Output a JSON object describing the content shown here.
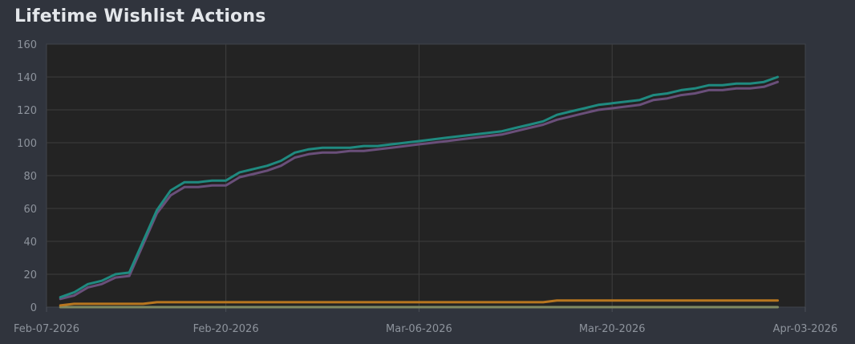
{
  "chart_data": {
    "type": "line",
    "title": "Lifetime Wishlist Actions",
    "xlabel": "",
    "ylabel": "",
    "x_range": [
      "2026-02-07",
      "2026-04-03"
    ],
    "ylim": [
      0,
      160
    ],
    "y_ticks": [
      0,
      20,
      40,
      60,
      80,
      100,
      120,
      140,
      160
    ],
    "x_ticks": [
      "Feb-07-2026",
      "Feb-20-2026",
      "Mar-06-2026",
      "Mar-20-2026",
      "Apr-03-2026"
    ],
    "x_tick_dates": [
      "2026-02-07",
      "2026-02-20",
      "2026-03-06",
      "2026-03-20",
      "2026-04-03"
    ],
    "grid": true,
    "legend": "none",
    "x": [
      "2026-02-08",
      "2026-02-09",
      "2026-02-10",
      "2026-02-11",
      "2026-02-12",
      "2026-02-13",
      "2026-02-14",
      "2026-02-15",
      "2026-02-16",
      "2026-02-17",
      "2026-02-18",
      "2026-02-19",
      "2026-02-20",
      "2026-02-21",
      "2026-02-22",
      "2026-02-23",
      "2026-02-24",
      "2026-02-25",
      "2026-02-26",
      "2026-02-27",
      "2026-02-28",
      "2026-03-01",
      "2026-03-02",
      "2026-03-03",
      "2026-03-04",
      "2026-03-05",
      "2026-03-06",
      "2026-03-07",
      "2026-03-08",
      "2026-03-09",
      "2026-03-10",
      "2026-03-11",
      "2026-03-12",
      "2026-03-13",
      "2026-03-14",
      "2026-03-15",
      "2026-03-16",
      "2026-03-17",
      "2026-03-18",
      "2026-03-19",
      "2026-03-20",
      "2026-03-21",
      "2026-03-22",
      "2026-03-23",
      "2026-03-24",
      "2026-03-25",
      "2026-03-26",
      "2026-03-27",
      "2026-03-28",
      "2026-03-29",
      "2026-03-30",
      "2026-03-31",
      "2026-04-01"
    ],
    "series": [
      {
        "color": "#1f8a80",
        "values": [
          6,
          9,
          14,
          16,
          20,
          21,
          40,
          59,
          71,
          76,
          76,
          77,
          77,
          82,
          84,
          86,
          89,
          94,
          96,
          97,
          97,
          97,
          98,
          98,
          99,
          100,
          101,
          102,
          103,
          104,
          105,
          106,
          107,
          109,
          111,
          113,
          117,
          119,
          121,
          123,
          124,
          125,
          126,
          129,
          130,
          132,
          133,
          135,
          135,
          136,
          136,
          137,
          140
        ]
      },
      {
        "color": "#6a4f7a",
        "values": [
          5,
          7,
          12,
          14,
          18,
          19,
          38,
          57,
          68,
          73,
          73,
          74,
          74,
          79,
          81,
          83,
          86,
          91,
          93,
          94,
          94,
          95,
          95,
          96,
          97,
          98,
          99,
          100,
          101,
          102,
          103,
          104,
          105,
          107,
          109,
          111,
          114,
          116,
          118,
          120,
          121,
          122,
          123,
          126,
          127,
          129,
          130,
          132,
          132,
          133,
          133,
          134,
          137
        ]
      },
      {
        "color": "#b8761f",
        "values": [
          1,
          2,
          2,
          2,
          2,
          2,
          2,
          3,
          3,
          3,
          3,
          3,
          3,
          3,
          3,
          3,
          3,
          3,
          3,
          3,
          3,
          3,
          3,
          3,
          3,
          3,
          3,
          3,
          3,
          3,
          3,
          3,
          3,
          3,
          3,
          3,
          4,
          4,
          4,
          4,
          4,
          4,
          4,
          4,
          4,
          4,
          4,
          4,
          4,
          4,
          4,
          4,
          4
        ]
      },
      {
        "color": "#7f8a62",
        "values": [
          0,
          0,
          0,
          0,
          0,
          0,
          0,
          0,
          0,
          0,
          0,
          0,
          0,
          0,
          0,
          0,
          0,
          0,
          0,
          0,
          0,
          0,
          0,
          0,
          0,
          0,
          0,
          0,
          0,
          0,
          0,
          0,
          0,
          0,
          0,
          0,
          0,
          0,
          0,
          0,
          0,
          0,
          0,
          0,
          0,
          0,
          0,
          0,
          0,
          0,
          0,
          0,
          0
        ]
      }
    ]
  }
}
